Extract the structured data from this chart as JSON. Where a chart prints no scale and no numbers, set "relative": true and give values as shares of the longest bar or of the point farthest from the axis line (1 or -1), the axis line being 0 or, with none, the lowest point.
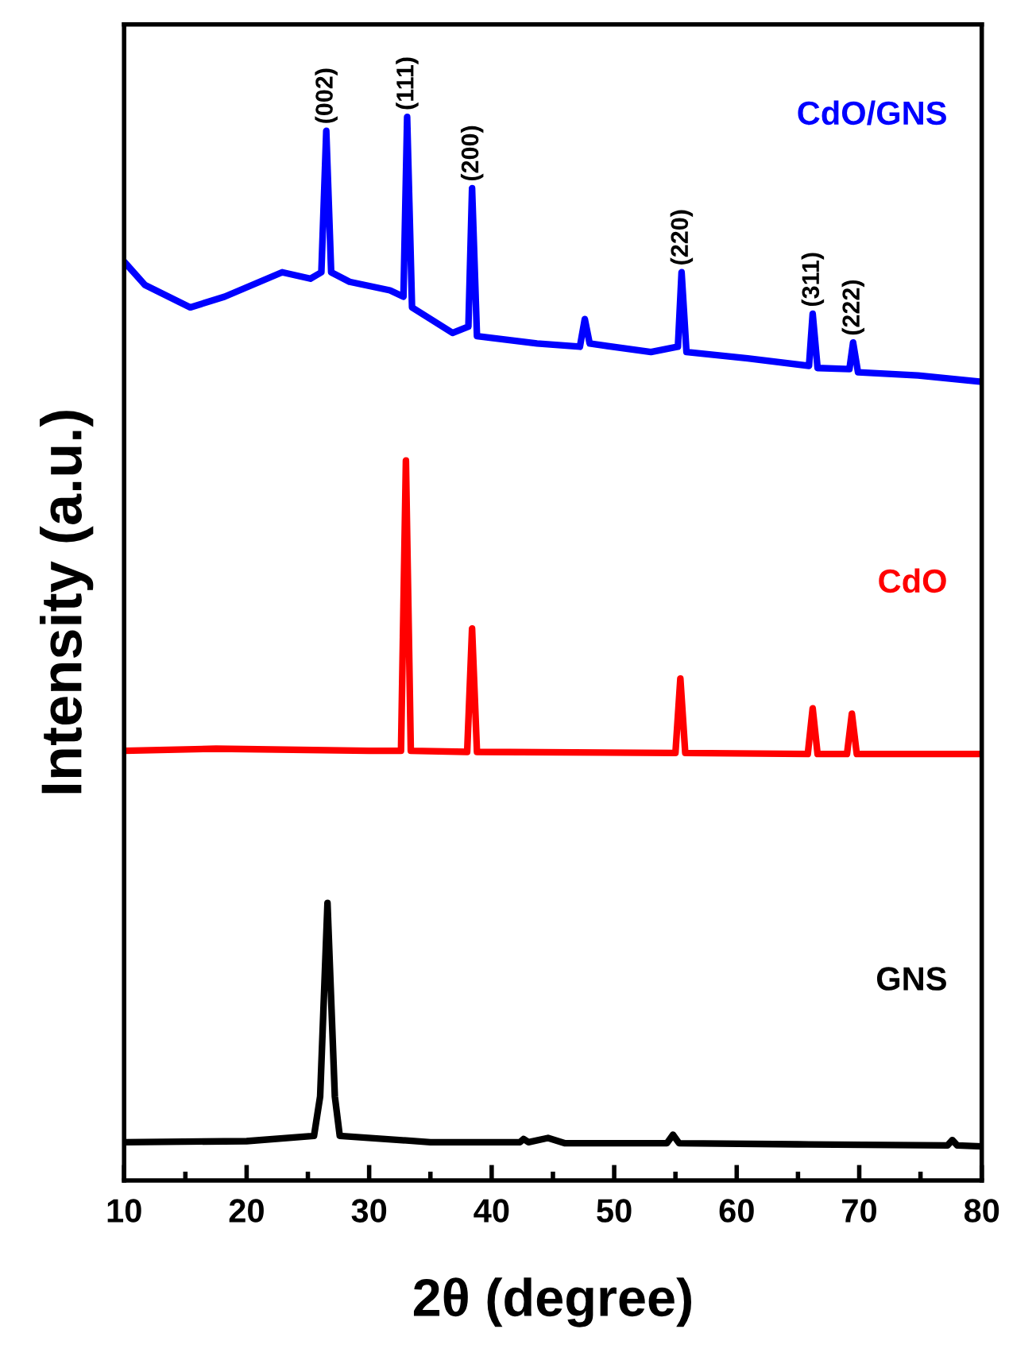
{
  "chart_data": {
    "type": "line",
    "relative": true,
    "xlabel": "2θ (degree)",
    "ylabel": "Intensity (a.u.)",
    "xlim": [
      10,
      80
    ],
    "xticks": [
      10,
      20,
      30,
      40,
      50,
      60,
      70,
      80
    ],
    "tick_labels": "x",
    "grid": false,
    "legend": false,
    "marker": "none",
    "line_style": "solid",
    "series": [
      {
        "name": "CdO/GNS",
        "color": "#0000ff",
        "x": [
          10,
          11.7,
          15.4,
          18.2,
          22.9,
          25.2,
          26.1,
          26.5,
          26.9,
          28.4,
          31.7,
          32.8,
          33.1,
          33.5,
          36.8,
          38.1,
          38.4,
          38.8,
          43.7,
          47.2,
          47.6,
          48.0,
          53.0,
          55.2,
          55.5,
          55.9,
          60.9,
          65.9,
          66.2,
          66.6,
          69.2,
          69.5,
          69.9,
          74.8,
          80
        ],
        "values": [
          0.864,
          0.842,
          0.821,
          0.831,
          0.854,
          0.848,
          0.854,
          0.987,
          0.854,
          0.845,
          0.837,
          0.831,
          1.0,
          0.821,
          0.797,
          0.803,
          0.933,
          0.794,
          0.787,
          0.784,
          0.81,
          0.787,
          0.779,
          0.784,
          0.854,
          0.779,
          0.773,
          0.766,
          0.815,
          0.764,
          0.763,
          0.788,
          0.76,
          0.757,
          0.751
        ]
      },
      {
        "name": "CdO",
        "color": "#ff0000",
        "x": [
          10,
          17.5,
          30,
          32.6,
          33.0,
          33.4,
          38.0,
          38.4,
          38.8,
          55.0,
          55.4,
          55.8,
          65.8,
          66.2,
          66.6,
          69.0,
          69.4,
          69.8,
          80
        ],
        "values": [
          0.404,
          0.406,
          0.404,
          0.404,
          0.677,
          0.404,
          0.403,
          0.519,
          0.403,
          0.402,
          0.472,
          0.402,
          0.401,
          0.444,
          0.401,
          0.401,
          0.439,
          0.401,
          0.401
        ]
      },
      {
        "name": "GNS",
        "color": "#000000",
        "x": [
          10,
          20,
          25.5,
          26.0,
          26.6,
          27.2,
          27.6,
          35,
          42.3,
          42.6,
          43.0,
          44.6,
          46,
          54.3,
          54.8,
          55.3,
          65,
          77.2,
          77.6,
          78.0,
          80
        ],
        "values": [
          0.036,
          0.037,
          0.042,
          0.079,
          0.261,
          0.079,
          0.042,
          0.036,
          0.036,
          0.039,
          0.036,
          0.04,
          0.035,
          0.035,
          0.043,
          0.035,
          0.034,
          0.033,
          0.038,
          0.033,
          0.032
        ]
      }
    ],
    "annotations": [
      {
        "text": "(002)",
        "x": 26.5,
        "y": 0.987
      },
      {
        "text": "(111)",
        "x": 33.1,
        "y": 1.0
      },
      {
        "text": "(200)",
        "x": 38.4,
        "y": 0.933
      },
      {
        "text": "(220)",
        "x": 55.5,
        "y": 0.854
      },
      {
        "text": "(311)",
        "x": 66.2,
        "y": 0.815
      },
      {
        "text": "(222)",
        "x": 69.5,
        "y": 0.788
      }
    ]
  }
}
